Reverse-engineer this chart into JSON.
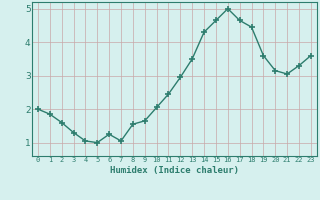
{
  "xlabel": "Humidex (Indice chaleur)",
  "x_values": [
    0,
    1,
    2,
    3,
    4,
    5,
    6,
    7,
    8,
    9,
    10,
    11,
    12,
    13,
    14,
    15,
    16,
    17,
    18,
    19,
    20,
    21,
    22,
    23
  ],
  "y_values": [
    2.0,
    1.85,
    1.6,
    1.3,
    1.05,
    1.0,
    1.25,
    1.05,
    1.55,
    1.65,
    2.05,
    2.45,
    2.95,
    3.5,
    4.3,
    4.65,
    5.0,
    4.65,
    4.45,
    3.6,
    3.15,
    3.05,
    3.3,
    3.6
  ],
  "line_color": "#2d7d6e",
  "marker": "+",
  "marker_size": 4,
  "line_width": 1.0,
  "bg_color": "#d6f0ee",
  "grid_color": "#c8a8a8",
  "axis_color": "#2d7d6e",
  "tick_label_color": "#2d7d6e",
  "xlabel_color": "#2d7d6e",
  "ylim": [
    0.6,
    5.2
  ],
  "yticks": [
    1,
    2,
    3,
    4,
    5
  ],
  "xlim": [
    -0.5,
    23.5
  ]
}
